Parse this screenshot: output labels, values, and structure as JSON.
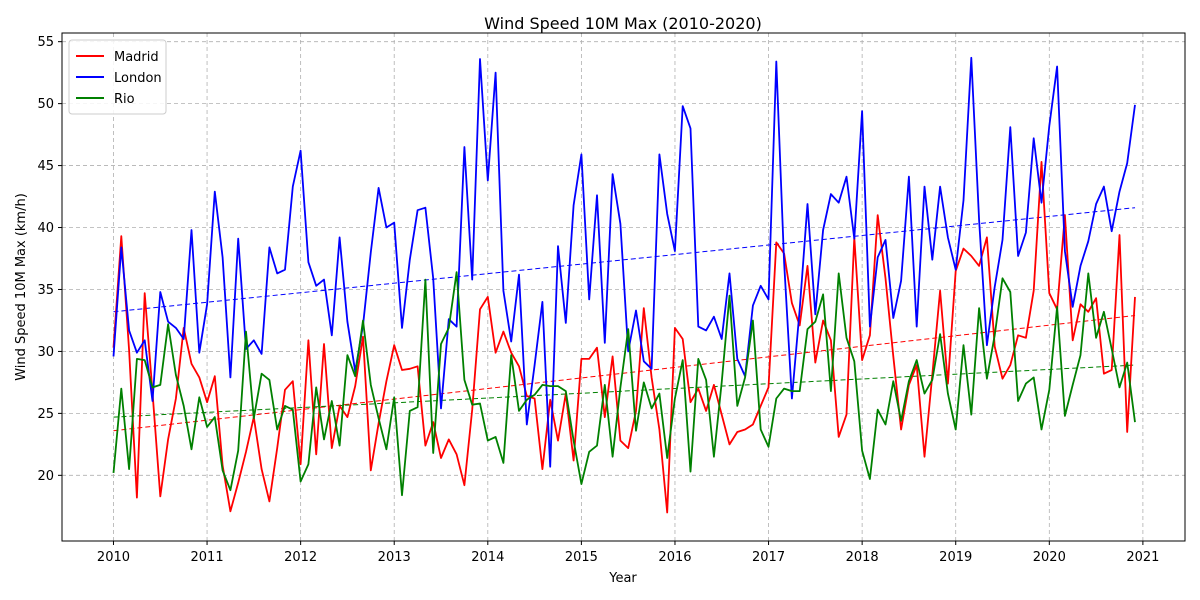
{
  "chart_data": {
    "type": "line",
    "title": "Wind Speed 10M Max (2010-2020)",
    "xlabel": "Year",
    "ylabel": "Wind Speed 10M Max (km/h)",
    "xlim": [
      2009.45,
      2021.45
    ],
    "ylim": [
      14.7,
      55.7
    ],
    "xticks": [
      2010,
      2011,
      2012,
      2013,
      2014,
      2015,
      2016,
      2017,
      2018,
      2019,
      2020,
      2021
    ],
    "yticks": [
      20,
      25,
      30,
      35,
      40,
      45,
      50,
      55
    ],
    "grid": true,
    "legend_position": "top-left",
    "x_start": 2010,
    "x_step": 0.08333,
    "series": [
      {
        "name": "Madrid",
        "color": "#ff0000",
        "values": [
          30.3,
          39.3,
          30.1,
          18.2,
          34.7,
          26.7,
          18.3,
          22.9,
          26.2,
          31.9,
          29.0,
          27.9,
          25.9,
          28.0,
          20.8,
          17.1,
          19.4,
          21.9,
          24.7,
          20.5,
          17.9,
          22.2,
          26.9,
          27.6,
          20.9,
          30.9,
          21.7,
          30.6,
          22.2,
          25.6,
          24.7,
          27.2,
          31.2,
          20.4,
          24.2,
          27.6,
          30.5,
          28.5,
          28.6,
          28.8,
          22.4,
          24.3,
          21.4,
          22.9,
          21.7,
          19.2,
          25.3,
          33.4,
          34.4,
          29.9,
          31.6,
          29.9,
          28.8,
          26.4,
          26.2,
          20.5,
          26.1,
          22.8,
          26.6,
          21.2,
          29.4,
          29.4,
          30.3,
          24.7,
          29.6,
          22.8,
          22.2,
          25.2,
          33.5,
          27.9,
          23.7,
          17.0,
          31.9,
          31.0,
          25.9,
          27.0,
          25.2,
          27.3,
          24.9,
          22.5,
          23.5,
          23.7,
          24.1,
          25.6,
          27.1,
          38.8,
          37.9,
          33.9,
          32.1,
          36.9,
          29.1,
          32.5,
          30.9,
          23.1,
          24.9,
          39.2,
          29.3,
          31.3,
          41.0,
          35.9,
          29.6,
          23.7,
          27.3,
          28.9,
          21.5,
          28.1,
          34.9,
          27.4,
          36.5,
          38.3,
          37.7,
          36.9,
          39.2,
          30.4,
          27.8,
          28.9,
          31.3,
          31.1,
          34.9,
          45.3,
          34.7,
          33.4,
          41.0,
          30.9,
          33.8,
          33.2,
          34.3,
          28.2,
          28.5,
          39.4,
          23.5,
          34.4
        ]
      },
      {
        "name": "London",
        "color": "#0000ff",
        "values": [
          29.6,
          38.4,
          31.7,
          29.9,
          30.9,
          26.0,
          34.8,
          32.4,
          31.9,
          31.0,
          39.8,
          29.9,
          33.8,
          42.9,
          37.6,
          27.9,
          39.1,
          30.2,
          30.9,
          29.8,
          38.4,
          36.3,
          36.6,
          43.3,
          46.2,
          37.2,
          35.3,
          35.8,
          31.3,
          39.2,
          32.4,
          28.4,
          32.1,
          38.0,
          43.2,
          40.0,
          40.4,
          31.9,
          37.4,
          41.4,
          41.6,
          35.9,
          25.4,
          32.6,
          32.0,
          46.5,
          35.8,
          53.6,
          43.8,
          52.5,
          34.9,
          30.8,
          36.2,
          24.1,
          28.9,
          34.0,
          20.7,
          38.5,
          32.3,
          41.8,
          45.9,
          34.2,
          42.6,
          30.7,
          44.3,
          40.3,
          30.0,
          33.3,
          29.2,
          28.6,
          45.9,
          41.1,
          38.1,
          49.8,
          48.0,
          32.0,
          31.7,
          32.8,
          31.0,
          36.3,
          29.4,
          28.0,
          33.7,
          35.3,
          34.2,
          53.4,
          37.2,
          26.2,
          33.4,
          41.9,
          33.0,
          39.8,
          42.7,
          42.0,
          44.1,
          39.1,
          49.4,
          32.0,
          37.6,
          39.0,
          32.7,
          35.7,
          44.1,
          32.0,
          43.3,
          37.4,
          43.3,
          39.2,
          36.6,
          42.2,
          53.7,
          40.6,
          30.5,
          35.2,
          39.0,
          48.1,
          37.7,
          39.6,
          47.2,
          42.0,
          48.2,
          53.0,
          38.1,
          33.6,
          36.9,
          38.9,
          41.9,
          43.3,
          39.7,
          42.9,
          45.2,
          49.9
        ]
      },
      {
        "name": "Rio",
        "color": "#008000",
        "values": [
          20.2,
          27.0,
          20.5,
          29.4,
          29.3,
          27.1,
          27.3,
          32.2,
          28.1,
          25.6,
          22.1,
          26.3,
          23.9,
          24.7,
          20.4,
          18.8,
          22.0,
          31.6,
          24.6,
          28.2,
          27.7,
          23.7,
          25.6,
          25.3,
          19.5,
          20.9,
          27.1,
          22.9,
          26.0,
          22.4,
          29.7,
          28.0,
          32.5,
          27.3,
          24.6,
          22.1,
          26.3,
          18.4,
          25.2,
          25.5,
          35.8,
          21.8,
          30.6,
          31.9,
          36.4,
          27.7,
          25.7,
          25.8,
          22.8,
          23.1,
          21.0,
          29.7,
          25.2,
          26.1,
          26.5,
          27.3,
          27.2,
          27.2,
          26.8,
          22.8,
          19.3,
          21.9,
          22.4,
          27.3,
          21.5,
          27.1,
          31.8,
          23.6,
          27.5,
          25.4,
          26.6,
          21.4,
          26.2,
          29.3,
          20.3,
          29.4,
          27.7,
          21.5,
          27.5,
          34.5,
          25.6,
          27.9,
          32.5,
          23.7,
          22.3,
          26.2,
          27.0,
          26.8,
          26.8,
          31.8,
          32.4,
          34.6,
          26.8,
          36.3,
          31.1,
          29.2,
          22.0,
          19.7,
          25.3,
          24.1,
          27.6,
          24.4,
          27.6,
          29.3,
          26.6,
          27.7,
          31.4,
          26.6,
          23.7,
          30.5,
          24.9,
          33.5,
          27.8,
          31.3,
          35.9,
          34.8,
          26.0,
          27.4,
          27.9,
          23.7,
          26.9,
          33.6,
          24.8,
          27.3,
          29.7,
          36.3,
          31.1,
          33.2,
          30.2,
          27.1,
          29.1,
          24.3
        ]
      }
    ],
    "trendlines": [
      {
        "series": "Madrid",
        "color": "#ff0000",
        "start": 23.6,
        "end": 32.9
      },
      {
        "series": "London",
        "color": "#0000ff",
        "start": 33.2,
        "end": 41.6
      },
      {
        "series": "Rio",
        "color": "#008000",
        "start": 24.7,
        "end": 28.9
      }
    ]
  }
}
